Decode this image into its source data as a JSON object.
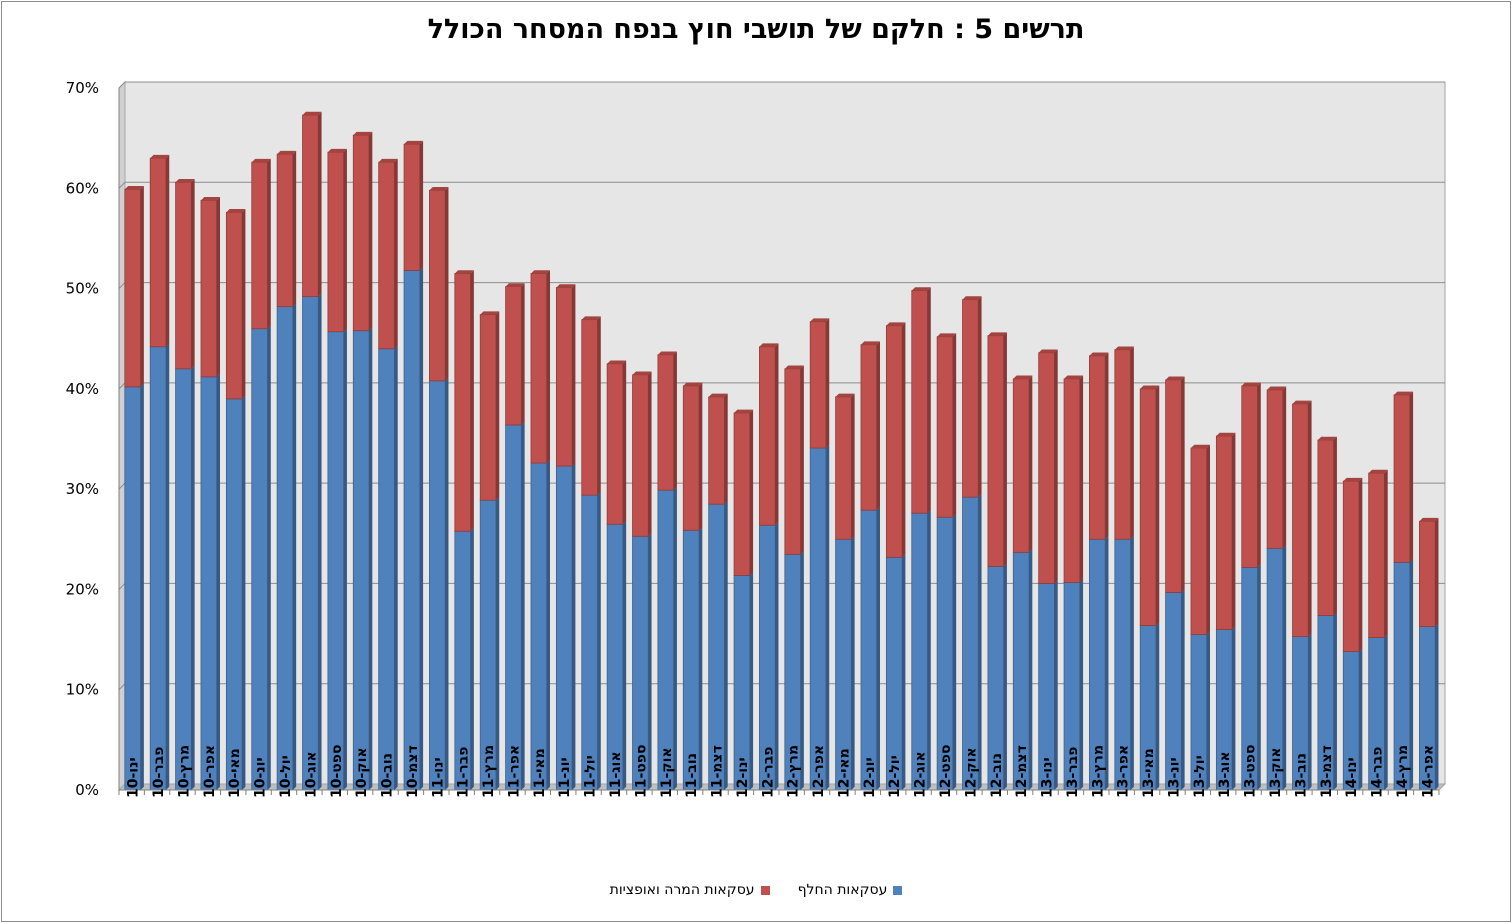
{
  "chart_data": {
    "type": "bar",
    "stacked": true,
    "title": "תרשים 5 : חלקם של תושבי חוץ בנפח המסחר הכולל",
    "ylim": [
      0,
      70
    ],
    "yticks": [
      "0%",
      "10%",
      "20%",
      "30%",
      "40%",
      "50%",
      "60%",
      "70%"
    ],
    "grid": true,
    "legend_position": "bottom",
    "categories": [
      "ינו-10",
      "פבר-10",
      "מרץ-10",
      "אפר-10",
      "מאי-10",
      "יונ-10",
      "יול-10",
      "אוג-10",
      "ספט-10",
      "אוק-10",
      "נוב-10",
      "דצמ-10",
      "ינו-11",
      "פבר-11",
      "מרץ-11",
      "אפר-11",
      "מאי-11",
      "יונ-11",
      "יול-11",
      "אוג-11",
      "ספט-11",
      "אוק-11",
      "נוב-11",
      "דצמ-11",
      "ינו-12",
      "פבר-12",
      "מרץ-12",
      "אפר-12",
      "מאי-12",
      "יונ-12",
      "יול-12",
      "אוג-12",
      "ספט-12",
      "אוק-12",
      "נוב-12",
      "דצמ-12",
      "ינו-13",
      "פבר-13",
      "מרץ-13",
      "אפר-13",
      "מאי-13",
      "יונ-13",
      "יול-13",
      "אוג-13",
      "ספט-13",
      "אוק-13",
      "נוב-13",
      "דצמ-13",
      "ינו-14",
      "פבר-14",
      "מרץ-14",
      "אפר-14"
    ],
    "series": [
      {
        "name": "עסקאות החלף",
        "color": "#4f81bd",
        "values": [
          40.2,
          44.2,
          42.0,
          41.2,
          39.0,
          46.0,
          48.2,
          49.2,
          45.7,
          45.8,
          44.0,
          51.8,
          40.8,
          25.8,
          28.9,
          36.4,
          32.6,
          32.3,
          29.4,
          26.5,
          25.3,
          29.9,
          25.9,
          28.5,
          21.4,
          26.4,
          23.5,
          34.1,
          25.0,
          27.9,
          23.2,
          27.6,
          27.2,
          29.2,
          22.3,
          23.7,
          20.6,
          20.7,
          25.0,
          25.0,
          16.4,
          19.7,
          15.5,
          16.0,
          22.2,
          24.1,
          15.3,
          17.4,
          13.8,
          15.2,
          22.7,
          16.3
        ]
      },
      {
        "name": "עסקאות המרה ואופציות",
        "color": "#c0504d",
        "values": [
          19.7,
          18.8,
          18.6,
          17.6,
          18.6,
          16.6,
          15.2,
          18.1,
          17.9,
          19.5,
          18.6,
          12.6,
          19.0,
          25.7,
          18.5,
          13.8,
          18.9,
          17.8,
          17.5,
          16.0,
          16.1,
          13.5,
          14.4,
          10.7,
          16.2,
          17.8,
          18.5,
          12.6,
          14.2,
          16.5,
          23.1,
          22.2,
          18.0,
          19.7,
          23.0,
          17.3,
          23.0,
          20.3,
          18.3,
          18.9,
          23.6,
          21.2,
          18.6,
          19.3,
          18.1,
          15.8,
          23.2,
          17.5,
          17.0,
          16.4,
          16.7,
          10.5
        ]
      }
    ]
  }
}
